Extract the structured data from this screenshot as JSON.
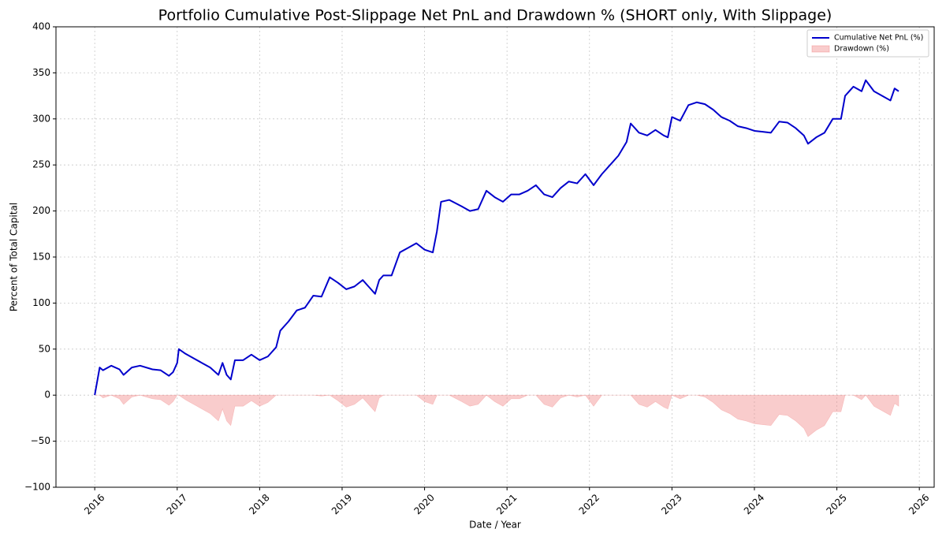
{
  "chart_data": {
    "type": "line",
    "title": "Portfolio Cumulative Post-Slippage Net PnL and Drawdown % (SHORT only, With Slippage)",
    "x_label": "Date / Year",
    "y_label": "Percent of Total Capital",
    "x": [
      2016.0,
      2016.03,
      2016.06,
      2016.1,
      2016.2,
      2016.3,
      2016.35,
      2016.45,
      2016.55,
      2016.7,
      2016.8,
      2016.9,
      2016.95,
      2017.0,
      2017.02,
      2017.1,
      2017.2,
      2017.3,
      2017.4,
      2017.5,
      2017.55,
      2017.6,
      2017.65,
      2017.7,
      2017.8,
      2017.9,
      2018.0,
      2018.1,
      2018.2,
      2018.25,
      2018.35,
      2018.45,
      2018.55,
      2018.65,
      2018.75,
      2018.85,
      2018.95,
      2019.05,
      2019.15,
      2019.25,
      2019.35,
      2019.4,
      2019.45,
      2019.5,
      2019.6,
      2019.7,
      2019.8,
      2019.9,
      2020.0,
      2020.1,
      2020.15,
      2020.2,
      2020.3,
      2020.45,
      2020.55,
      2020.65,
      2020.75,
      2020.85,
      2020.95,
      2021.05,
      2021.15,
      2021.25,
      2021.35,
      2021.45,
      2021.55,
      2021.65,
      2021.75,
      2021.85,
      2021.95,
      2022.05,
      2022.15,
      2022.25,
      2022.35,
      2022.45,
      2022.5,
      2022.6,
      2022.7,
      2022.8,
      2022.9,
      2022.95,
      2023.0,
      2023.1,
      2023.2,
      2023.3,
      2023.4,
      2023.5,
      2023.6,
      2023.7,
      2023.8,
      2023.9,
      2024.0,
      2024.1,
      2024.2,
      2024.3,
      2024.4,
      2024.5,
      2024.6,
      2024.65,
      2024.75,
      2024.85,
      2024.95,
      2025.05,
      2025.1,
      2025.2,
      2025.3,
      2025.35,
      2025.45,
      2025.55,
      2025.65,
      2025.7,
      2025.75
    ],
    "series": [
      {
        "name": "Cumulative Net PnL (%)",
        "kind": "line",
        "color": "#0000cc",
        "values": [
          0,
          15,
          30,
          27,
          32,
          28,
          22,
          30,
          32,
          28,
          27,
          21,
          25,
          35,
          50,
          45,
          40,
          35,
          30,
          22,
          35,
          22,
          17,
          38,
          38,
          44,
          38,
          42,
          52,
          70,
          80,
          92,
          95,
          108,
          107,
          128,
          122,
          115,
          118,
          125,
          115,
          110,
          125,
          130,
          130,
          155,
          160,
          165,
          158,
          155,
          178,
          210,
          212,
          205,
          200,
          202,
          222,
          215,
          210,
          218,
          218,
          222,
          228,
          218,
          215,
          225,
          232,
          230,
          240,
          228,
          240,
          250,
          260,
          275,
          295,
          285,
          282,
          288,
          282,
          280,
          302,
          298,
          315,
          318,
          316,
          310,
          302,
          298,
          292,
          290,
          287,
          286,
          285,
          297,
          296,
          290,
          282,
          273,
          280,
          285,
          300,
          300,
          325,
          335,
          330,
          342,
          330,
          325,
          320,
          333,
          330
        ]
      },
      {
        "name": "Drawdown (%)",
        "kind": "area",
        "color": "#f08080",
        "values": [
          0,
          0,
          0,
          -3,
          0,
          -4,
          -10,
          -2,
          0,
          -4,
          -5,
          -11,
          -7,
          0,
          0,
          -5,
          -10,
          -15,
          -20,
          -28,
          -15,
          -28,
          -33,
          -12,
          -12,
          -6,
          -12,
          -8,
          0,
          0,
          0,
          0,
          0,
          0,
          -1,
          0,
          -6,
          -13,
          -10,
          -3,
          -13,
          -18,
          -3,
          0,
          0,
          0,
          0,
          0,
          -7,
          -10,
          0,
          0,
          0,
          -7,
          -12,
          -10,
          0,
          -7,
          -12,
          -4,
          -4,
          0,
          0,
          -10,
          -13,
          -3,
          0,
          -2,
          0,
          -12,
          0,
          0,
          0,
          0,
          0,
          -10,
          -13,
          -7,
          -13,
          -15,
          0,
          -4,
          0,
          0,
          -2,
          -8,
          -16,
          -20,
          -26,
          -28,
          -31,
          -32,
          -33,
          -21,
          -22,
          -28,
          -36,
          -45,
          -38,
          -33,
          -18,
          -18,
          0,
          0,
          -5,
          0,
          -12,
          -17,
          -22,
          -9,
          -12
        ]
      }
    ],
    "xlim": [
      2015.53,
      2026.18
    ],
    "xticks": [
      2016,
      2017,
      2018,
      2019,
      2020,
      2021,
      2022,
      2023,
      2024,
      2025,
      2026
    ],
    "ylim": [
      -100,
      400
    ],
    "yticks": [
      {
        "value": -100,
        "label": "−100"
      },
      {
        "value": -50,
        "label": "−50"
      },
      0,
      50,
      100,
      150,
      200,
      250,
      300,
      350,
      400
    ],
    "grid": true,
    "legend": "upper-right"
  }
}
